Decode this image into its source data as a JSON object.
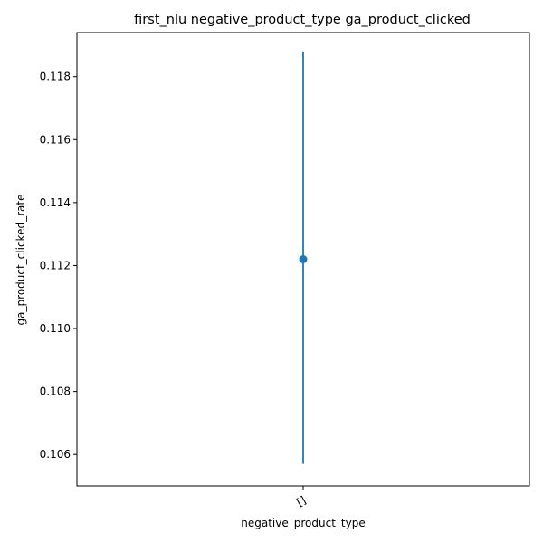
{
  "chart_data": {
    "type": "scatter",
    "title": "first_nlu negative_product_type ga_product_clicked",
    "xlabel": "negative_product_type",
    "ylabel": "ga_product_clicked_rate",
    "categories": [
      "[]"
    ],
    "points": [
      {
        "category": "[]",
        "y": 0.1122,
        "yerr_low": 0.1057,
        "yerr_high": 0.1188
      }
    ],
    "ylim": [
      0.105,
      0.1194
    ],
    "yticks": [
      0.106,
      0.108,
      0.11,
      0.112,
      0.114,
      0.116,
      0.118
    ],
    "ytick_labels": [
      "0.106",
      "0.108",
      "0.110",
      "0.112",
      "0.114",
      "0.116",
      "0.118"
    ],
    "grid": false,
    "colors": {
      "series": "#1f77b4",
      "axes": "#000000"
    }
  }
}
